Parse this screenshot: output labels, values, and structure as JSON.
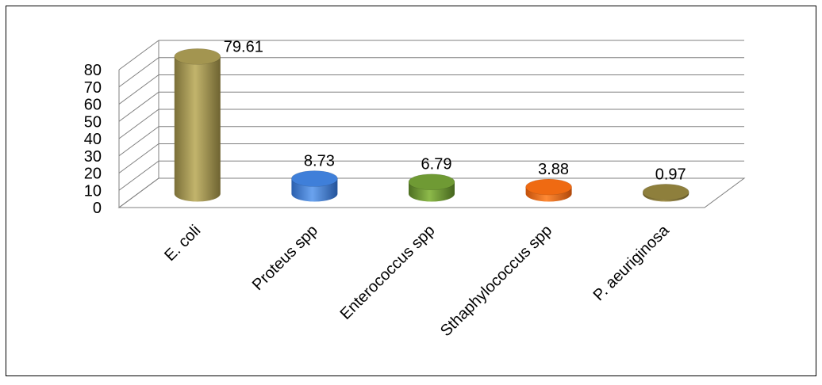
{
  "chart_data": {
    "type": "bar",
    "style": "3d-cylinder",
    "categories": [
      "E. coli",
      "Proteus spp",
      "Enterococcus spp",
      "Sthaphylococcus spp",
      "P. aeuriginosa"
    ],
    "values": [
      79.61,
      8.73,
      6.79,
      3.88,
      0.97
    ],
    "value_labels": [
      "79.61",
      "8.73",
      "6.79",
      "3.88",
      "0.97"
    ],
    "ylim": [
      0,
      80
    ],
    "yticks": [
      "0",
      "10",
      "20",
      "30",
      "40",
      "50",
      "60",
      "70",
      "80"
    ],
    "grid": true,
    "legend": "none",
    "colors": [
      "#A39550",
      "#3F7FD9",
      "#6F9A34",
      "#EF6A12",
      "#8E7F3C"
    ]
  }
}
